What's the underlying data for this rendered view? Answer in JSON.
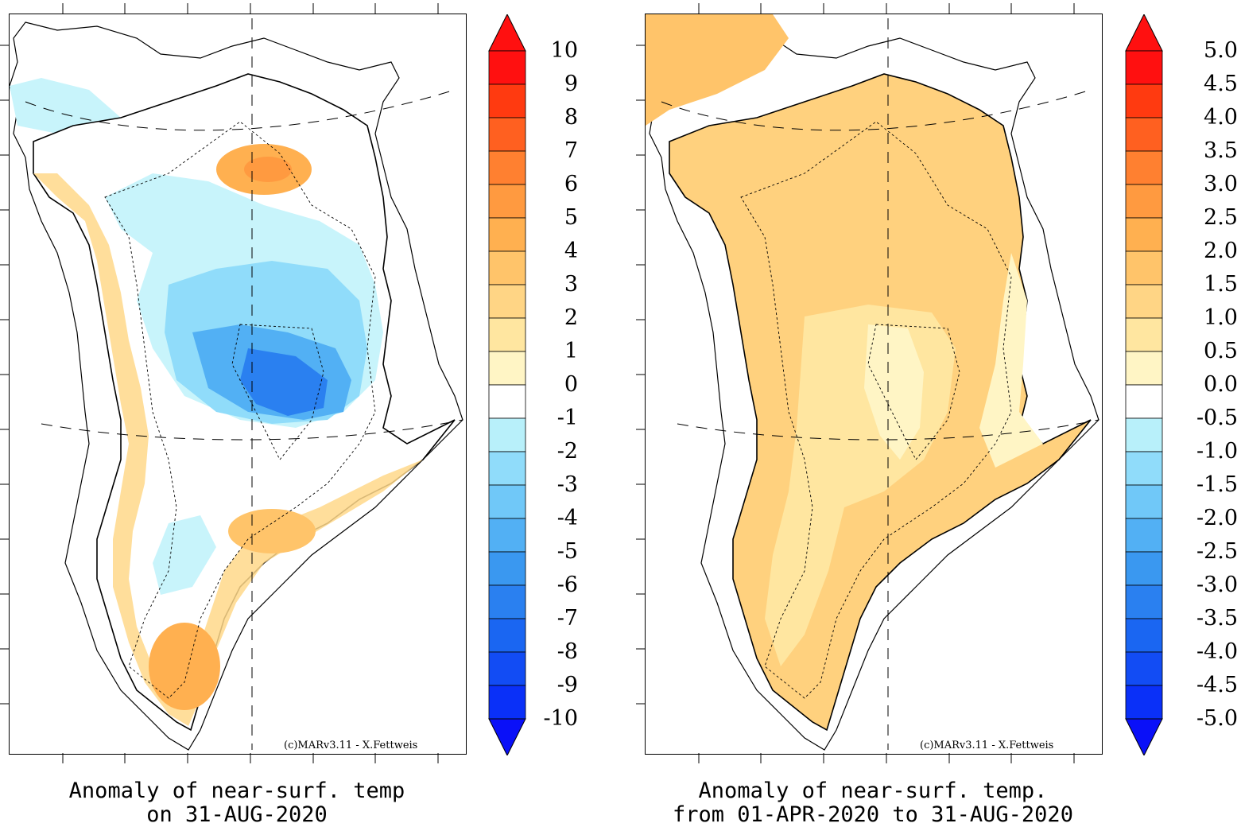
{
  "panels": [
    {
      "id": "daily",
      "title_line1": "Anomaly of near-surf. temp",
      "title_line2": "on 31-AUG-2020",
      "credit": "(c)MARv3.11 - X.Fettweis",
      "colorbar": {
        "labels": [
          "10",
          "9",
          "8",
          "7",
          "6",
          "5",
          "4",
          "3",
          "2",
          "1",
          "0",
          "-1",
          "-2",
          "-3",
          "-4",
          "-5",
          "-6",
          "-7",
          "-8",
          "-9",
          "-10"
        ],
        "colors": [
          "#ff1010",
          "#ff3a10",
          "#ff6020",
          "#ff8030",
          "#ff9a40",
          "#ffb050",
          "#ffc46a",
          "#ffd585",
          "#ffe6a0",
          "#fff5c5",
          "#ffffff",
          "#ffffff",
          "#b8f0fa",
          "#90dcfa",
          "#70c8f8",
          "#52b0f4",
          "#3a98f0",
          "#2a80f0",
          "#1a66f2",
          "#124cf4",
          "#0a30f8"
        ],
        "top_arrow_color": "#ff1010",
        "bottom_arrow_color": "#0a10f8"
      }
    },
    {
      "id": "seasonal",
      "title_line1": "Anomaly of near-surf. temp.",
      "title_line2": "from 01-APR-2020 to 31-AUG-2020",
      "credit": "(c)MARv3.11 - X.Fettweis",
      "colorbar": {
        "labels": [
          "5.0",
          "4.5",
          "4.0",
          "3.5",
          "3.0",
          "2.5",
          "2.0",
          "1.5",
          "1.0",
          "0.5",
          "0.0",
          "-0.5",
          "-1.0",
          "-1.5",
          "-2.0",
          "-2.5",
          "-3.0",
          "-3.5",
          "-4.0",
          "-4.5",
          "-5.0"
        ],
        "colors": [
          "#ff1010",
          "#ff3a10",
          "#ff6020",
          "#ff8030",
          "#ff9a40",
          "#ffb050",
          "#ffc46a",
          "#ffd585",
          "#ffe6a0",
          "#fff5c5",
          "#ffffff",
          "#ffffff",
          "#b8f0fa",
          "#90dcfa",
          "#70c8f8",
          "#52b0f4",
          "#3a98f0",
          "#2a80f0",
          "#1a66f2",
          "#124cf4",
          "#0a30f8"
        ],
        "top_arrow_color": "#ff1010",
        "bottom_arrow_color": "#0a10f8"
      }
    }
  ]
}
